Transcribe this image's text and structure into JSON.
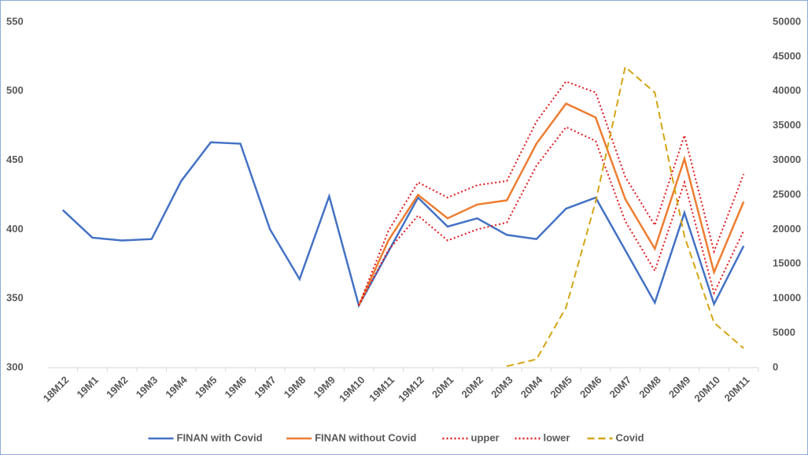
{
  "chart_data": {
    "type": "line",
    "categories": [
      "18M12",
      "19M1",
      "19M2",
      "19M3",
      "19M4",
      "19M5",
      "19M6",
      "19M7",
      "19M8",
      "19M9",
      "19M10",
      "19M11",
      "19M12",
      "20M1",
      "20M2",
      "20M3",
      "20M4",
      "20M5",
      "20M6",
      "20M7",
      "20M8",
      "20M9",
      "20M10",
      "20M11"
    ],
    "series": [
      {
        "name": "FINAN with Covid",
        "color": "#4472c4",
        "style": "solid",
        "values": [
          414,
          394,
          392,
          393,
          435,
          463,
          462,
          400,
          364,
          424,
          345,
          384,
          423,
          402,
          408,
          396,
          393,
          415,
          423,
          385,
          347,
          412,
          346,
          388
        ]
      },
      {
        "name": "FINAN without Covid",
        "color": "#ed7d31",
        "style": "solid",
        "values": [
          null,
          null,
          null,
          null,
          null,
          null,
          null,
          null,
          null,
          null,
          345,
          392,
          425,
          408,
          418,
          421,
          462,
          491,
          481,
          422,
          386,
          451,
          369,
          420
        ]
      },
      {
        "name": "upper",
        "color": "#e0191c",
        "style": "dotted",
        "values": [
          null,
          null,
          null,
          null,
          null,
          null,
          null,
          null,
          null,
          null,
          345,
          399,
          434,
          423,
          432,
          435,
          478,
          507,
          499,
          438,
          403,
          468,
          384,
          440
        ]
      },
      {
        "name": "lower",
        "color": "#e0191c",
        "style": "dotted",
        "values": [
          null,
          null,
          null,
          null,
          null,
          null,
          null,
          null,
          null,
          null,
          345,
          385,
          410,
          392,
          400,
          405,
          446,
          474,
          464,
          406,
          370,
          434,
          354,
          399
        ]
      },
      {
        "name": "Covid",
        "color": "#d4a514",
        "style": "dashed",
        "axis": "y2",
        "values": [
          null,
          null,
          null,
          null,
          null,
          null,
          null,
          null,
          null,
          null,
          null,
          null,
          null,
          null,
          null,
          200,
          1200,
          8700,
          24000,
          43500,
          39800,
          19000,
          6500,
          2800
        ]
      }
    ],
    "ylim": [
      300,
      550
    ],
    "yticks": [
      300,
      350,
      400,
      450,
      500,
      550
    ],
    "y2lim": [
      0,
      50000
    ],
    "y2ticks": [
      0,
      5000,
      10000,
      15000,
      20000,
      25000,
      30000,
      35000,
      40000,
      45000,
      50000
    ],
    "legend": "bottom"
  }
}
